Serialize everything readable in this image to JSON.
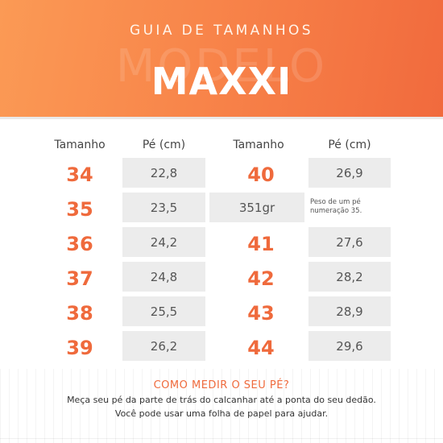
{
  "header": {
    "subtitle": "GUIA DE TAMANHOS",
    "watermark": "MODELO",
    "title": "MAXXI"
  },
  "columns": {
    "size_label": "Tamanho",
    "foot_label": "Pé (cm)"
  },
  "left_rows": [
    {
      "size": "34",
      "cm": "22,8"
    },
    {
      "size": "35",
      "cm": "23,5"
    },
    {
      "size": "36",
      "cm": "24,2"
    },
    {
      "size": "37",
      "cm": "24,8"
    },
    {
      "size": "38",
      "cm": "25,5"
    },
    {
      "size": "39",
      "cm": "26,2"
    }
  ],
  "right_rows": [
    {
      "size": "40",
      "cm": "26,9"
    },
    {
      "weight": "351gr",
      "note": "Peso de um pé numeração 35."
    },
    {
      "size": "41",
      "cm": "27,6"
    },
    {
      "size": "42",
      "cm": "28,2"
    },
    {
      "size": "43",
      "cm": "28,9"
    },
    {
      "size": "44",
      "cm": "29,6"
    }
  ],
  "footer": {
    "title": "COMO MEDIR O SEU PÉ?",
    "line1": "Meça seu pé da parte de trás do calcanhar até a ponta do seu dedão.",
    "line2": "Você pode usar uma folha de papel para ajudar."
  },
  "colors": {
    "accent": "#ef6a3c",
    "header_start": "#fb9a55",
    "header_end": "#f16a3d",
    "box": "#ececec"
  }
}
